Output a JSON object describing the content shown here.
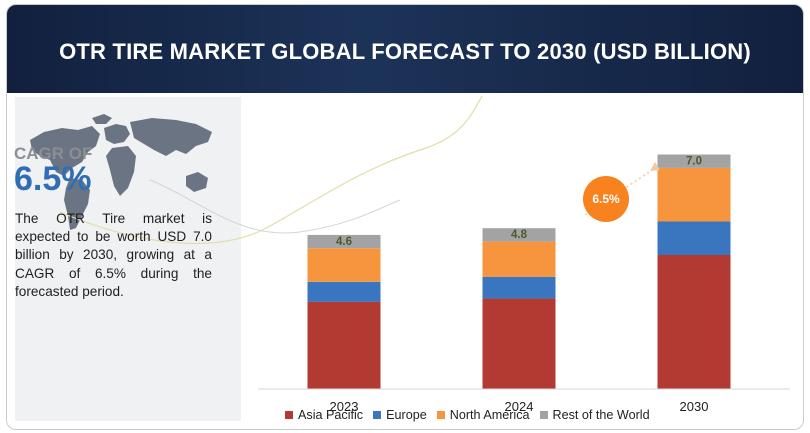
{
  "page": {
    "title": "OTR TIRE MARKET GLOBAL FORECAST TO 2030 (USD BILLION)",
    "cagr_label": "CAGR OF",
    "cagr_value": "6.5%",
    "description": "The OTR Tire market is expected to be worth USD 7.0 billion by 2030, growing at a CAGR of 6.5% during the forecasted period.",
    "growth_badge": "6.5%"
  },
  "colors": {
    "header": "#1a2e52",
    "asia_pacific": "#b23a33",
    "europe": "#3a76bf",
    "north_america": "#f7953e",
    "rest_of_world": "#a3a3a3",
    "badge": "#f7821e"
  },
  "chart_data": {
    "type": "bar",
    "stacked": true,
    "categories": [
      "2023",
      "2024",
      "2030"
    ],
    "totals": [
      "4.6",
      "4.8",
      "7.0"
    ],
    "series": [
      {
        "name": "Asia Pacific",
        "color": "#b23a33",
        "values": [
          2.6,
          2.7,
          4.0
        ]
      },
      {
        "name": "Europe",
        "color": "#3a76bf",
        "values": [
          0.6,
          0.65,
          1.0
        ]
      },
      {
        "name": "North America",
        "color": "#f7953e",
        "values": [
          1.0,
          1.05,
          1.6
        ]
      },
      {
        "name": "Rest of the World",
        "color": "#a3a3a3",
        "values": [
          0.4,
          0.4,
          0.4
        ]
      }
    ],
    "ylim": [
      0,
      7.5
    ],
    "grid": false,
    "legend_position": "bottom"
  }
}
